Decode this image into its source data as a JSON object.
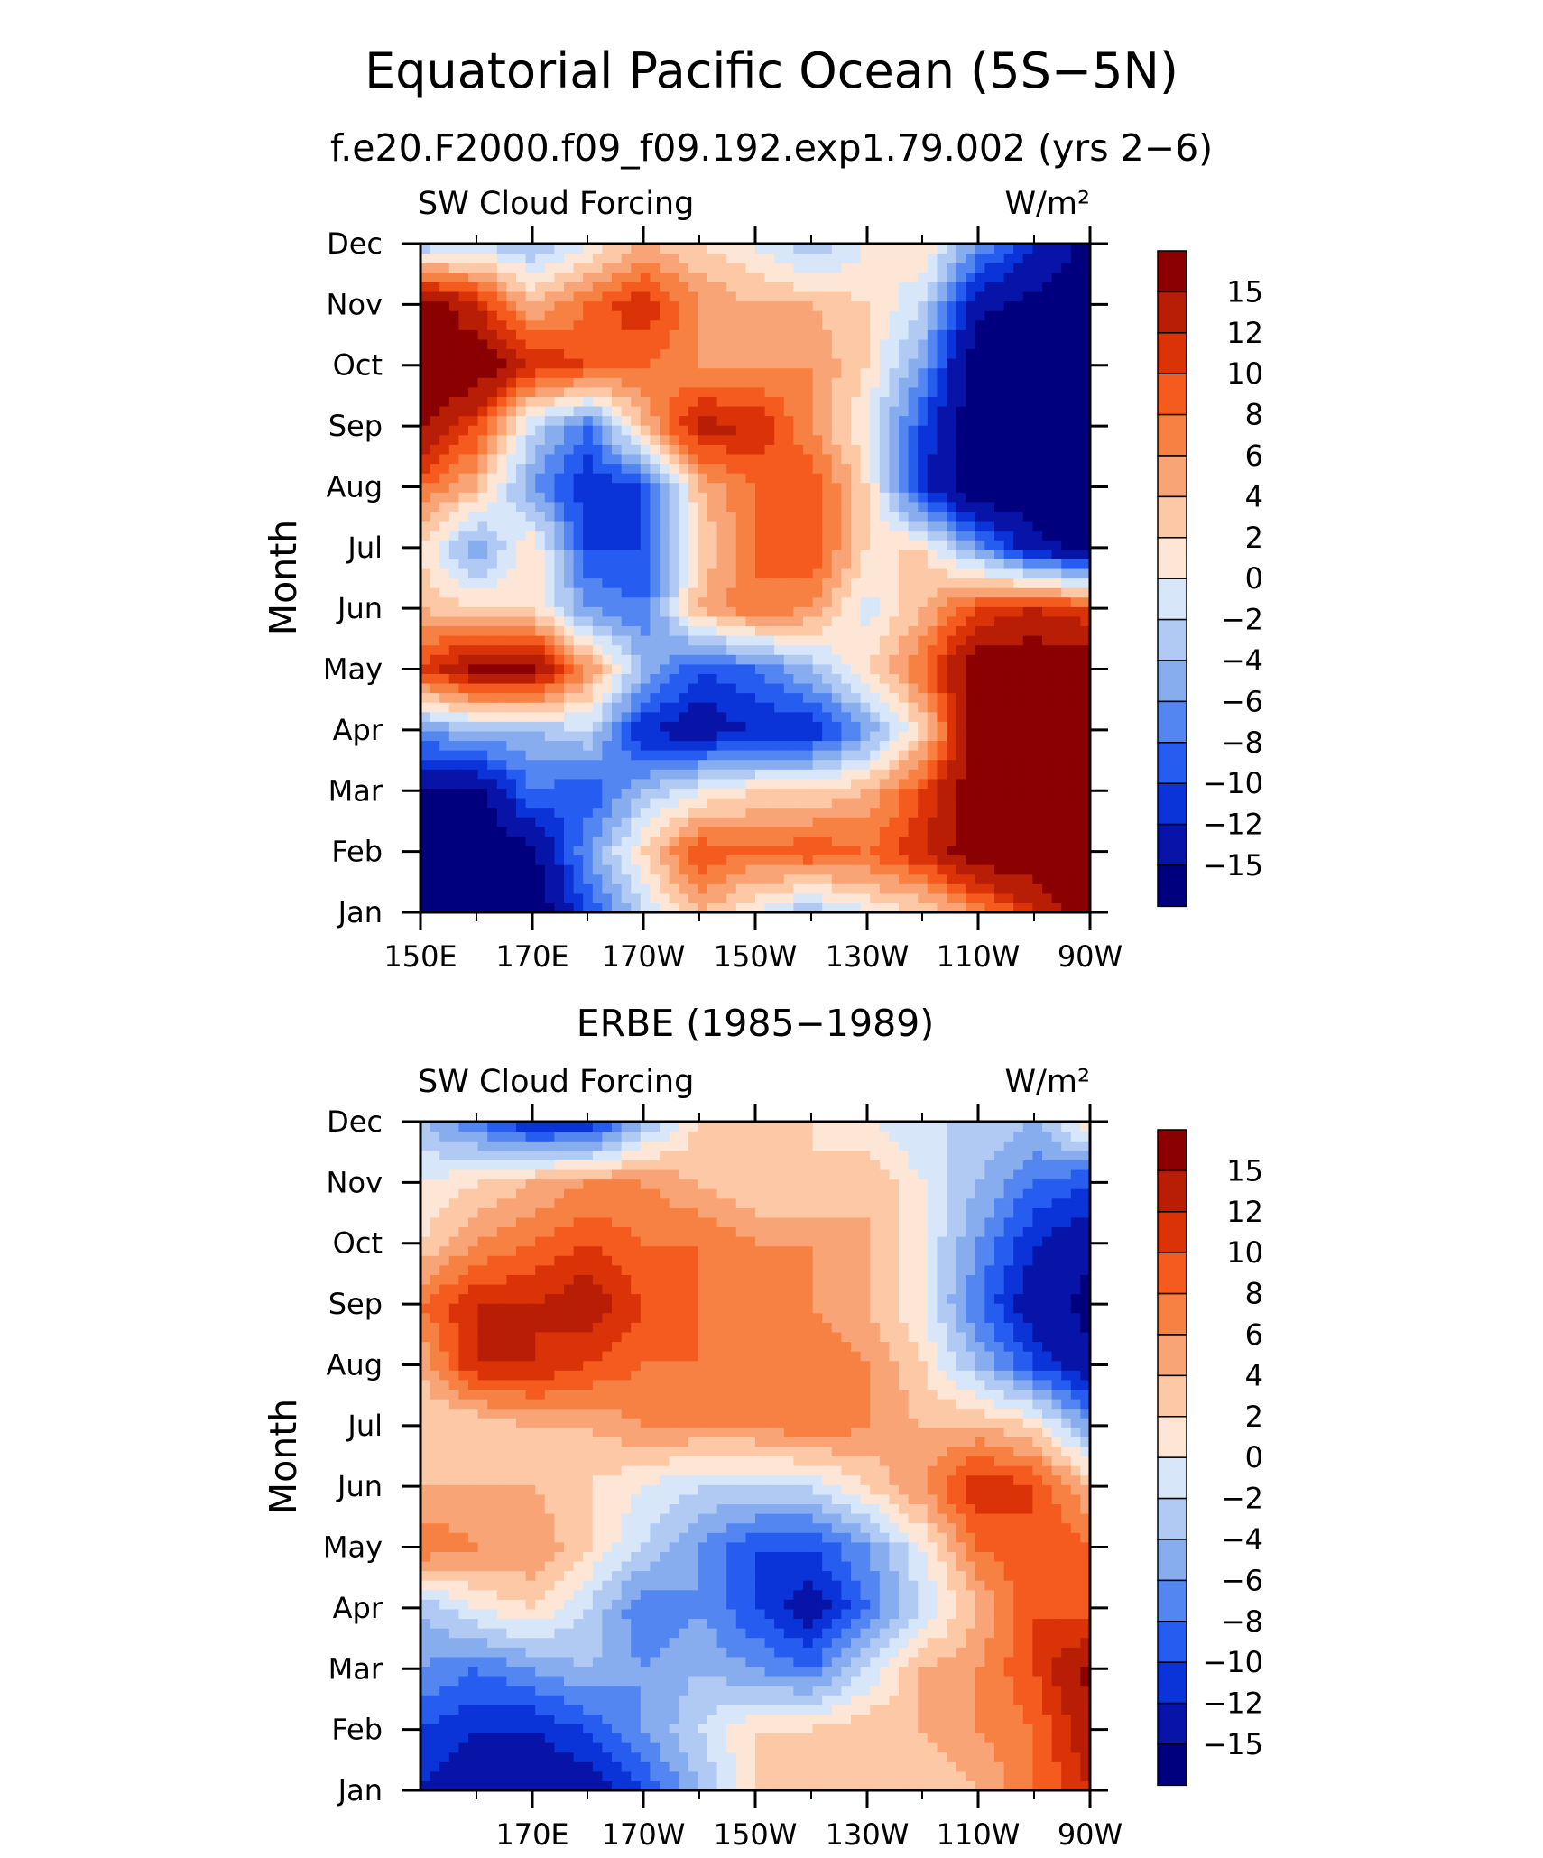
{
  "figure": {
    "title": "Equatorial Pacific Ocean (5S−5N)",
    "colorscale": {
      "levels": [
        "15",
        "12",
        "10",
        "8",
        "6",
        "4",
        "2",
        "0",
        "−2",
        "−4",
        "−6",
        "−8",
        "−10",
        "−12",
        "−15"
      ],
      "colors": [
        "#8b0000",
        "#b81d06",
        "#db3308",
        "#f55a1f",
        "#f78142",
        "#f9a476",
        "#fcc8a5",
        "#fde6d6",
        "#d7e6f8",
        "#b0caf4",
        "#88adef",
        "#5386f0",
        "#265df0",
        "#0a33d8",
        "#0714a7",
        "#00007f"
      ]
    }
  },
  "chart_data": [
    {
      "type": "heatmap",
      "title": "f.e20.F2000.f09_f09.192.exp1.79.002 (yrs 2−6)",
      "left_label": "SW Cloud Forcing",
      "right_label": "W/m²",
      "ylabel": "Month",
      "y_categories": [
        "Jan",
        "Feb",
        "Mar",
        "Apr",
        "May",
        "Jun",
        "Jul",
        "Aug",
        "Sep",
        "Oct",
        "Nov",
        "Dec"
      ],
      "x_tick_labels": [
        "150E",
        "170E",
        "170W",
        "150W",
        "130W",
        "110W",
        "90W"
      ],
      "xlim": [
        150,
        270
      ],
      "grid": [
        [
          -18,
          -18,
          -18,
          -10,
          -2,
          4,
          0,
          -4,
          0,
          2,
          6,
          12,
          18
        ],
        [
          -18,
          -18,
          -16,
          -6,
          2,
          10,
          8,
          10,
          8,
          12,
          18,
          18,
          18
        ],
        [
          -16,
          -16,
          -8,
          -10,
          -4,
          0,
          2,
          2,
          4,
          10,
          18,
          18,
          18
        ],
        [
          -6,
          -4,
          -4,
          -2,
          -12,
          -14,
          -12,
          -12,
          -6,
          2,
          18,
          18,
          18
        ],
        [
          10,
          16,
          16,
          6,
          -4,
          -10,
          -8,
          -4,
          2,
          8,
          18,
          18,
          18
        ],
        [
          4,
          2,
          2,
          -6,
          -8,
          4,
          8,
          6,
          -1,
          4,
          10,
          12,
          10
        ],
        [
          2,
          -6,
          2,
          -10,
          -10,
          2,
          8,
          10,
          2,
          2,
          -6,
          -14,
          -16
        ],
        [
          8,
          4,
          -6,
          -12,
          -10,
          4,
          8,
          10,
          2,
          -12,
          -18,
          -18,
          -18
        ],
        [
          16,
          10,
          -2,
          -8,
          4,
          13,
          12,
          6,
          0,
          -10,
          -18,
          -18,
          -18
        ],
        [
          18,
          18,
          12,
          10,
          8,
          6,
          6,
          6,
          2,
          -6,
          -18,
          -18,
          -18
        ],
        [
          18,
          12,
          4,
          8,
          12,
          6,
          4,
          4,
          2,
          -2,
          -14,
          -16,
          -18
        ],
        [
          -4,
          -2,
          -4,
          0,
          4,
          2,
          0,
          -4,
          0,
          2,
          -6,
          -12,
          -16
        ]
      ]
    },
    {
      "type": "heatmap",
      "title": "ERBE (1985−1989)",
      "left_label": "SW Cloud Forcing",
      "right_label": "W/m²",
      "ylabel": "Month",
      "y_categories": [
        "Jan",
        "Feb",
        "Mar",
        "Apr",
        "May",
        "Jun",
        "Jul",
        "Aug",
        "Sep",
        "Oct",
        "Nov",
        "Dec"
      ],
      "x_tick_labels": [
        "170E",
        "170W",
        "150W",
        "130W",
        "110W",
        "90W"
      ],
      "xlim": [
        150,
        270
      ],
      "grid": [
        [
          -12,
          -14,
          -14,
          -14,
          -10,
          -4,
          2,
          2,
          2,
          2,
          4,
          8,
          12
        ],
        [
          -10,
          -12,
          -12,
          -10,
          -6,
          -2,
          2,
          2,
          4,
          4,
          6,
          8,
          14
        ],
        [
          -6,
          -8,
          -6,
          -4,
          -6,
          -4,
          -6,
          -8,
          -2,
          4,
          6,
          10,
          16
        ],
        [
          -4,
          0,
          2,
          -2,
          -8,
          -6,
          -10,
          -14,
          -8,
          -2,
          4,
          10,
          8
        ],
        [
          8,
          6,
          6,
          2,
          -2,
          -6,
          -10,
          -10,
          -6,
          0,
          8,
          10,
          8
        ],
        [
          4,
          4,
          4,
          2,
          0,
          -2,
          -2,
          -2,
          2,
          6,
          12,
          10,
          4
        ],
        [
          2,
          2,
          4,
          4,
          6,
          6,
          6,
          8,
          6,
          4,
          4,
          2,
          -6
        ],
        [
          4,
          12,
          12,
          10,
          8,
          8,
          8,
          8,
          6,
          2,
          -4,
          -10,
          -14
        ],
        [
          8,
          12,
          12,
          14,
          10,
          8,
          6,
          6,
          4,
          0,
          -8,
          -14,
          -16
        ],
        [
          2,
          6,
          8,
          10,
          8,
          8,
          6,
          6,
          4,
          0,
          -6,
          -12,
          -14
        ],
        [
          0,
          2,
          4,
          6,
          6,
          4,
          2,
          2,
          4,
          0,
          -4,
          -8,
          -10
        ],
        [
          -4,
          -8,
          -12,
          -12,
          -4,
          2,
          2,
          2,
          0,
          -2,
          -2,
          -4,
          2
        ]
      ]
    }
  ]
}
